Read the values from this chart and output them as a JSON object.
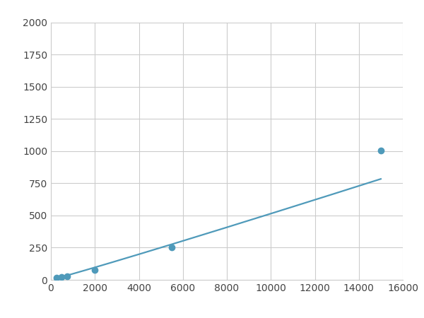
{
  "x": [
    246,
    492,
    740,
    2000,
    5500,
    15000
  ],
  "y": [
    15,
    22,
    28,
    75,
    255,
    1005
  ],
  "line_color": "#4f9aba",
  "marker_color": "#4f9aba",
  "marker_size": 6,
  "marker_style": "o",
  "line_width": 1.6,
  "xlim": [
    0,
    16000
  ],
  "ylim": [
    0,
    2000
  ],
  "xticks": [
    0,
    2000,
    4000,
    6000,
    8000,
    10000,
    12000,
    14000,
    16000
  ],
  "yticks": [
    0,
    250,
    500,
    750,
    1000,
    1250,
    1500,
    1750,
    2000
  ],
  "grid_color": "#cccccc",
  "background_color": "#ffffff",
  "figure_background": "#ffffff"
}
